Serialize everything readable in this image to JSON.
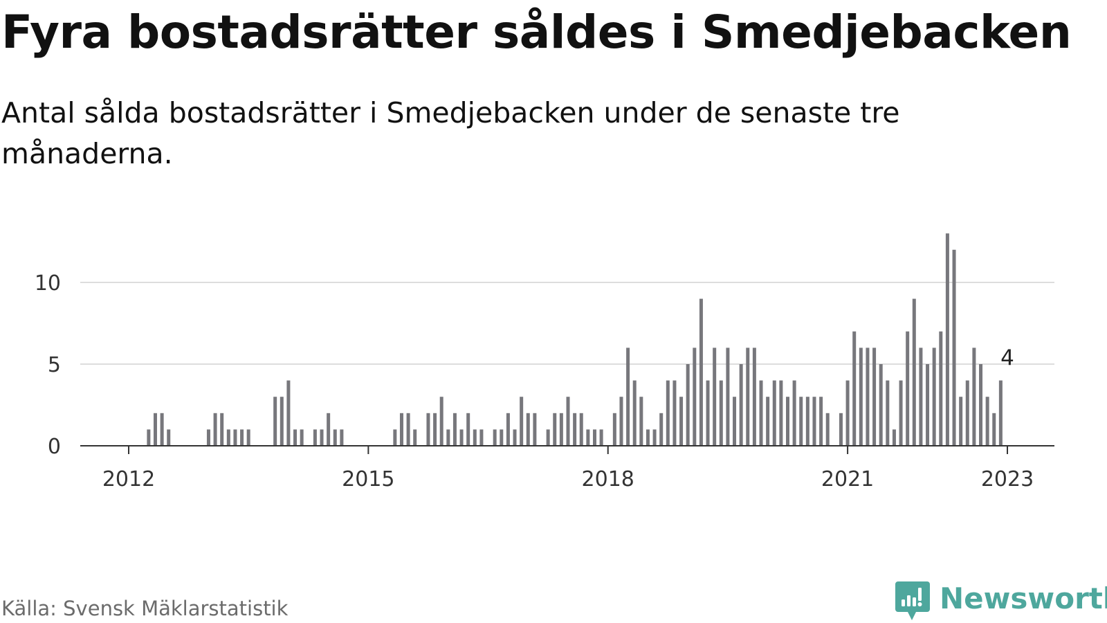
{
  "header": {
    "title": "Fyra bostadsrätter såldes i Smedjebacken",
    "subtitle": "Antal sålda bostadsrätter i Smedjebacken under de senaste tre månaderna."
  },
  "footer": {
    "source": "Källa: Svensk Mäklarstatistik",
    "brand": "Newsworthy"
  },
  "colors": {
    "bar": "#77777c",
    "highlight": "#1ba89b",
    "grid": "#dddddd",
    "axis": "#333333",
    "brand": "#4ea79d"
  },
  "icons": {
    "logo": "newsworthy-chart-bubble-icon"
  },
  "chart_data": {
    "type": "bar",
    "title": "",
    "xlabel": "",
    "ylabel": "",
    "x_start": "2012-01",
    "x_end": "2023-01",
    "ylim": [
      0,
      13
    ],
    "grid": true,
    "yticks": [
      0,
      5,
      10
    ],
    "xticks": [
      {
        "label": "2012",
        "value": "2012-01"
      },
      {
        "label": "2015",
        "value": "2015-01"
      },
      {
        "label": "2018",
        "value": "2018-01"
      },
      {
        "label": "2021",
        "value": "2021-01"
      },
      {
        "label": "2023",
        "value": "2023-01"
      }
    ],
    "highlight": {
      "month": "2023-01",
      "value": 4,
      "label": "4"
    },
    "series": [
      {
        "values": [
          0,
          0,
          0,
          1,
          2,
          2,
          1,
          0,
          0,
          0,
          0,
          0,
          1,
          2,
          2,
          1,
          1,
          1,
          1,
          0,
          0,
          0,
          3,
          3,
          4,
          1,
          1,
          0,
          1,
          1,
          2,
          1,
          1,
          0,
          0,
          0,
          0,
          0,
          0,
          0,
          1,
          2,
          2,
          1,
          0,
          2,
          2,
          3,
          1,
          2,
          1,
          2,
          1,
          1,
          0,
          1,
          1,
          2,
          1,
          3,
          2,
          2,
          0,
          1,
          2,
          2,
          3,
          2,
          2,
          1,
          1,
          1,
          0,
          2,
          3,
          6,
          4,
          3,
          1,
          1,
          2,
          4,
          4,
          3,
          5,
          6,
          9,
          4,
          6,
          4,
          6,
          3,
          5,
          6,
          6,
          4,
          3,
          4,
          4,
          3,
          4,
          3,
          3,
          3,
          3,
          2,
          0,
          2,
          4,
          7,
          6,
          6,
          6,
          5,
          4,
          1,
          4,
          7,
          9,
          6,
          5,
          6,
          7,
          13,
          12,
          3,
          4,
          6,
          5,
          3,
          2,
          4
        ]
      }
    ]
  }
}
